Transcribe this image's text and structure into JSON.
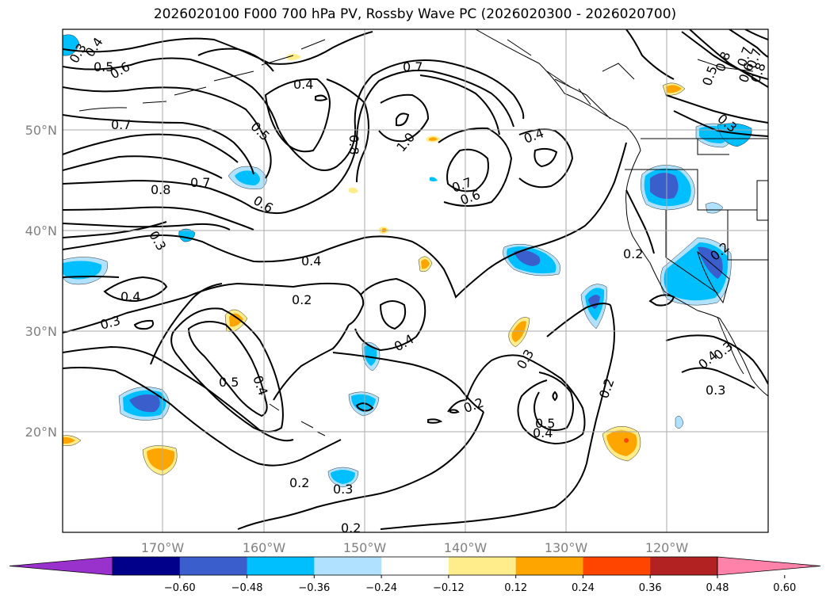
{
  "title": "2026020100 F000 700 hPa PV, Rossby Wave PC (2026020300 - 2026020700)",
  "lat_labels": [
    "50°N",
    "40°N",
    "30°N",
    "20°N"
  ],
  "lon_labels": [
    "170°W",
    "160°W",
    "150°W",
    "140°W",
    "130°W",
    "120°W"
  ],
  "contour_labels": [
    "0.3",
    "0.4",
    "0.5",
    "0.6",
    "0.7",
    "0.8",
    "0.8",
    "0.7",
    "0.6",
    "0.3",
    "0.4",
    "0.3",
    "0.4",
    "0.5",
    "0.6",
    "0.7",
    "0.8",
    "1.0",
    "0.7",
    "0.7",
    "0.6",
    "0.4",
    "0.4",
    "0.2",
    "0.4",
    "0.5",
    "0.4",
    "0.2",
    "0.3",
    "0.2",
    "0.2",
    "0.3",
    "0.5",
    "0.4",
    "0.2",
    "0.2",
    "0.3",
    "0.2",
    "0.4",
    "0.3",
    "0.8",
    "0.7",
    "0.5",
    "0.3"
  ],
  "colorbar": {
    "ticks": [
      "−0.60",
      "−0.48",
      "−0.36",
      "−0.24",
      "−0.12",
      "0.12",
      "0.24",
      "0.36",
      "0.48",
      "0.60"
    ],
    "colors": [
      "#9932CC",
      "#00008B",
      "#3A5FCD",
      "#00BFFF",
      "#B0E2FF",
      "#FFFFFF",
      "#FFEC8B",
      "#FFA500",
      "#FF4500",
      "#B22222",
      "#FF82AB"
    ]
  },
  "shading_colors": {
    "light_blue": "#B0E2FF",
    "blue": "#00BFFF",
    "dark_blue": "#3A5FCD",
    "light_yellow": "#FFEC8B",
    "orange": "#FFA500",
    "red": "#FF4500"
  }
}
